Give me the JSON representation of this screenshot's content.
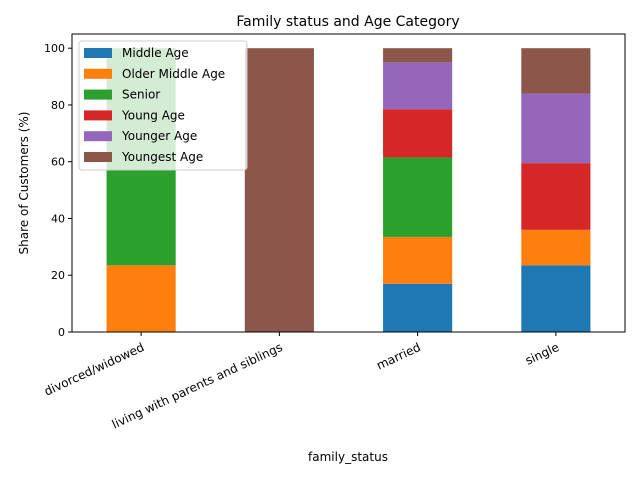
{
  "chart_data": {
    "type": "bar",
    "stacked": true,
    "title": "Family status and Age Category",
    "xlabel": "family_status",
    "ylabel": "Share of Customers (%)",
    "ylim": [
      0,
      105
    ],
    "yticks": [
      0,
      20,
      40,
      60,
      80,
      100
    ],
    "grid": false,
    "legend_position": "top-left",
    "categories": [
      "divorced/widowed",
      "living with parents and siblings",
      "married",
      "single"
    ],
    "series": [
      {
        "name": "Middle Age",
        "color": "#1f77b4",
        "values": [
          0,
          0,
          17,
          23.5
        ]
      },
      {
        "name": "Older Middle Age",
        "color": "#ff7f0e",
        "values": [
          23.5,
          0,
          16.5,
          12.5
        ]
      },
      {
        "name": "Senior",
        "color": "#2ca02c",
        "values": [
          76.5,
          0,
          28,
          0
        ]
      },
      {
        "name": "Young Age",
        "color": "#d62728",
        "values": [
          0,
          0,
          17,
          23.5
        ]
      },
      {
        "name": "Younger Age",
        "color": "#9467bd",
        "values": [
          0,
          0,
          16.5,
          24.5
        ]
      },
      {
        "name": "Youngest Age",
        "color": "#8c564b",
        "values": [
          0,
          100,
          5,
          16
        ]
      }
    ]
  }
}
